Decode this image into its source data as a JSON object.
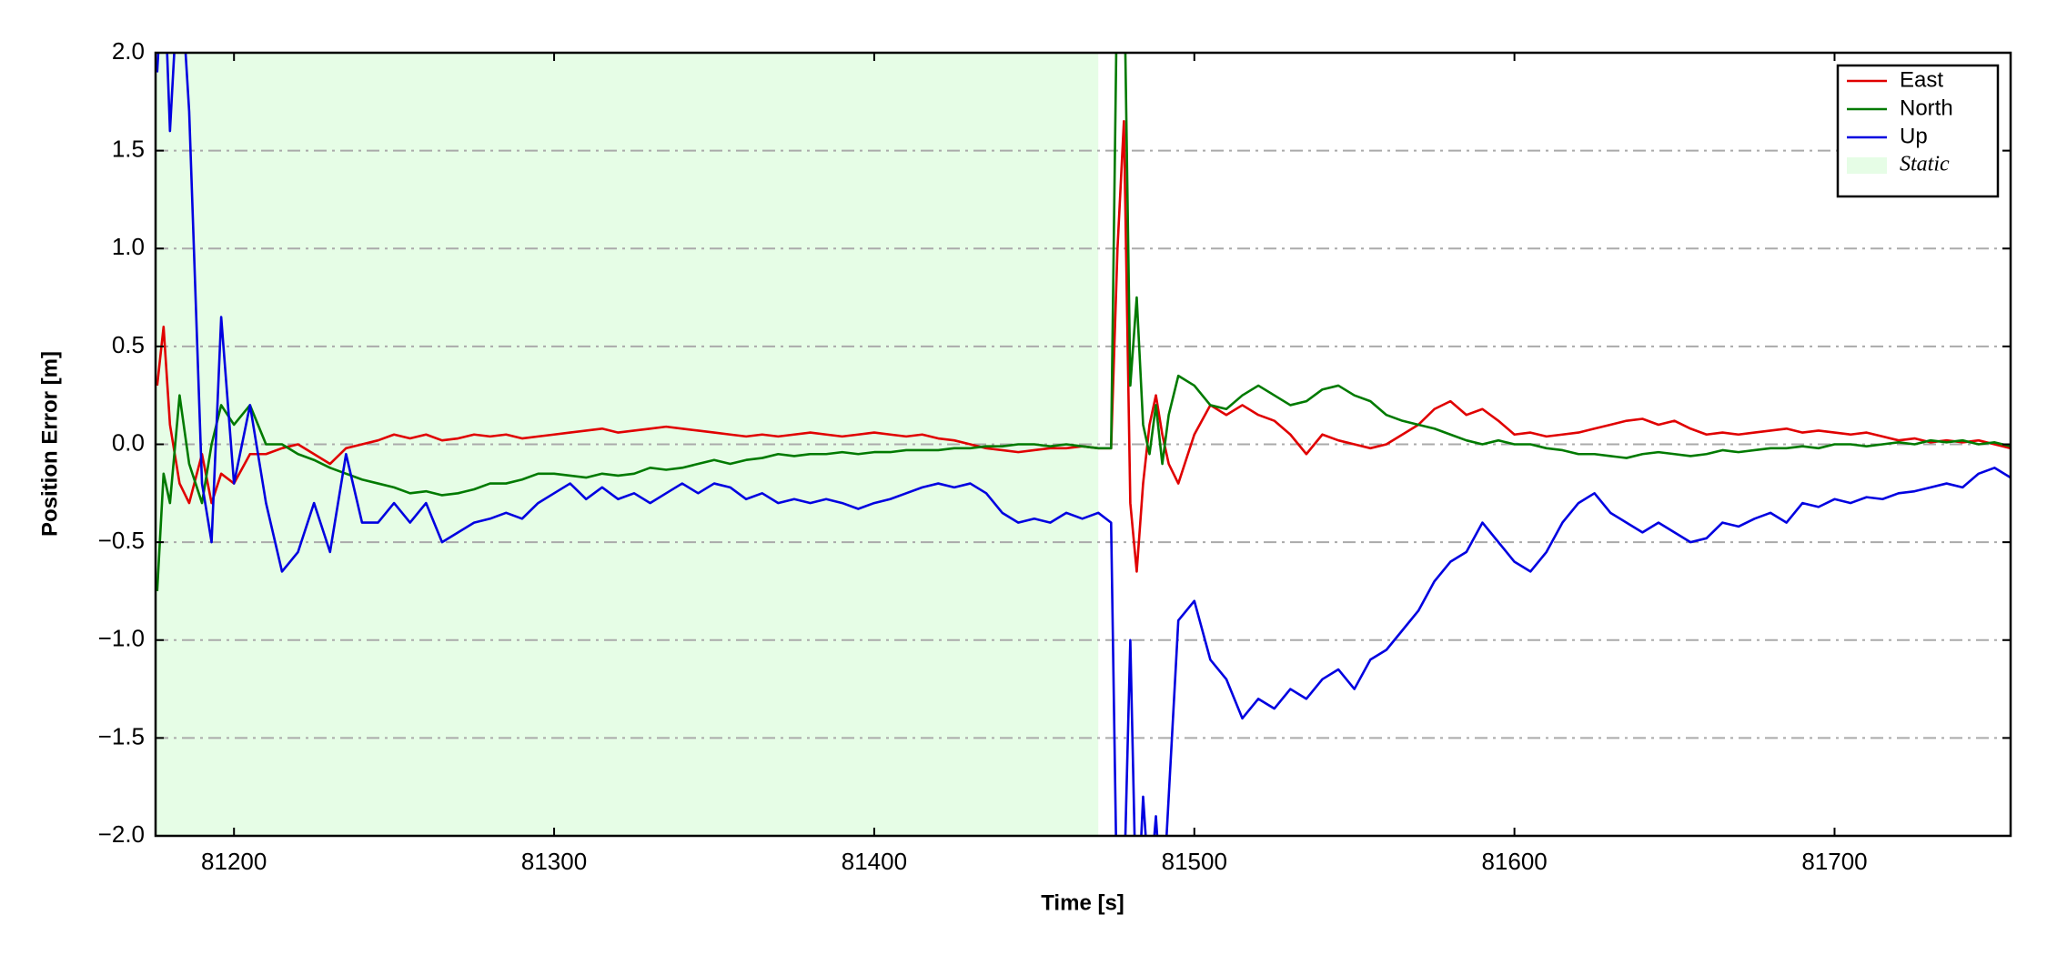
{
  "chart_data": {
    "type": "line",
    "xlabel": "Time [s]",
    "ylabel": "Position Error [m]",
    "x": [
      81176,
      81178,
      81180,
      81183,
      81186,
      81190,
      81193,
      81196,
      81200,
      81205,
      81210,
      81215,
      81220,
      81225,
      81230,
      81235,
      81240,
      81245,
      81250,
      81255,
      81260,
      81265,
      81270,
      81275,
      81280,
      81285,
      81290,
      81295,
      81300,
      81305,
      81310,
      81315,
      81320,
      81325,
      81330,
      81335,
      81340,
      81345,
      81350,
      81355,
      81360,
      81365,
      81370,
      81375,
      81380,
      81385,
      81390,
      81395,
      81400,
      81405,
      81410,
      81415,
      81420,
      81425,
      81430,
      81435,
      81440,
      81445,
      81450,
      81455,
      81460,
      81465,
      81470,
      81474,
      81476,
      81478,
      81480,
      81482,
      81484,
      81486,
      81488,
      81490,
      81492,
      81495,
      81500,
      81505,
      81510,
      81515,
      81520,
      81525,
      81530,
      81535,
      81540,
      81545,
      81550,
      81555,
      81560,
      81565,
      81570,
      81575,
      81580,
      81585,
      81590,
      81595,
      81600,
      81605,
      81610,
      81615,
      81620,
      81625,
      81630,
      81635,
      81640,
      81645,
      81650,
      81655,
      81660,
      81665,
      81670,
      81675,
      81680,
      81685,
      81690,
      81695,
      81700,
      81705,
      81710,
      81715,
      81720,
      81725,
      81730,
      81735,
      81740,
      81745,
      81750,
      81755
    ],
    "series": [
      {
        "name": "East",
        "color": "#e00000",
        "values": [
          0.3,
          0.6,
          0.1,
          -0.2,
          -0.3,
          -0.05,
          -0.3,
          -0.15,
          -0.2,
          -0.05,
          -0.05,
          -0.02,
          0,
          -0.05,
          -0.1,
          -0.02,
          0,
          0.02,
          0.05,
          0.03,
          0.05,
          0.02,
          0.03,
          0.05,
          0.04,
          0.05,
          0.03,
          0.04,
          0.05,
          0.06,
          0.07,
          0.08,
          0.06,
          0.07,
          0.08,
          0.09,
          0.08,
          0.07,
          0.06,
          0.05,
          0.04,
          0.05,
          0.04,
          0.05,
          0.06,
          0.05,
          0.04,
          0.05,
          0.06,
          0.05,
          0.04,
          0.05,
          0.03,
          0.02,
          0,
          -0.02,
          -0.03,
          -0.04,
          -0.03,
          -0.02,
          -0.02,
          -0.01,
          -0.02,
          -0.02,
          1.0,
          1.65,
          -0.3,
          -0.65,
          -0.2,
          0.1,
          0.25,
          0.05,
          -0.1,
          -0.2,
          0.05,
          0.2,
          0.15,
          0.2,
          0.15,
          0.12,
          0.05,
          -0.05,
          0.05,
          0.02,
          0,
          -0.02,
          0,
          0.05,
          0.1,
          0.18,
          0.22,
          0.15,
          0.18,
          0.12,
          0.05,
          0.06,
          0.04,
          0.05,
          0.06,
          0.08,
          0.1,
          0.12,
          0.13,
          0.1,
          0.12,
          0.08,
          0.05,
          0.06,
          0.05,
          0.06,
          0.07,
          0.08,
          0.06,
          0.07,
          0.06,
          0.05,
          0.06,
          0.04,
          0.02,
          0.03,
          0.01,
          0.02,
          0.01,
          0.02,
          0,
          -0.02
        ]
      },
      {
        "name": "North",
        "color": "#007a00",
        "values": [
          -0.75,
          -0.15,
          -0.3,
          0.25,
          -0.1,
          -0.3,
          0,
          0.2,
          0.1,
          0.2,
          0,
          0,
          -0.05,
          -0.08,
          -0.12,
          -0.15,
          -0.18,
          -0.2,
          -0.22,
          -0.25,
          -0.24,
          -0.26,
          -0.25,
          -0.23,
          -0.2,
          -0.2,
          -0.18,
          -0.15,
          -0.15,
          -0.16,
          -0.17,
          -0.15,
          -0.16,
          -0.15,
          -0.12,
          -0.13,
          -0.12,
          -0.1,
          -0.08,
          -0.1,
          -0.08,
          -0.07,
          -0.05,
          -0.06,
          -0.05,
          -0.05,
          -0.04,
          -0.05,
          -0.04,
          -0.04,
          -0.03,
          -0.03,
          -0.03,
          -0.02,
          -0.02,
          -0.01,
          -0.01,
          0,
          0,
          -0.01,
          0,
          -0.01,
          -0.02,
          -0.02,
          2.5,
          2.5,
          0.3,
          0.75,
          0.1,
          -0.05,
          0.2,
          -0.1,
          0.15,
          0.35,
          0.3,
          0.2,
          0.18,
          0.25,
          0.3,
          0.25,
          0.2,
          0.22,
          0.28,
          0.3,
          0.25,
          0.22,
          0.15,
          0.12,
          0.1,
          0.08,
          0.05,
          0.02,
          0,
          0.02,
          0,
          0,
          -0.02,
          -0.03,
          -0.05,
          -0.05,
          -0.06,
          -0.07,
          -0.05,
          -0.04,
          -0.05,
          -0.06,
          -0.05,
          -0.03,
          -0.04,
          -0.03,
          -0.02,
          -0.02,
          -0.01,
          -0.02,
          0,
          0,
          -0.01,
          0,
          0.01,
          0,
          0.02,
          0.01,
          0.02,
          0,
          0.01,
          -0.01
        ]
      },
      {
        "name": "Up",
        "color": "#0000e0",
        "values": [
          1.9,
          2.5,
          1.6,
          2.5,
          1.7,
          -0.2,
          -0.5,
          0.65,
          -0.2,
          0.2,
          -0.3,
          -0.65,
          -0.55,
          -0.3,
          -0.55,
          -0.05,
          -0.4,
          -0.4,
          -0.3,
          -0.4,
          -0.3,
          -0.5,
          -0.45,
          -0.4,
          -0.38,
          -0.35,
          -0.38,
          -0.3,
          -0.25,
          -0.2,
          -0.28,
          -0.22,
          -0.28,
          -0.25,
          -0.3,
          -0.25,
          -0.2,
          -0.25,
          -0.2,
          -0.22,
          -0.28,
          -0.25,
          -0.3,
          -0.28,
          -0.3,
          -0.28,
          -0.3,
          -0.33,
          -0.3,
          -0.28,
          -0.25,
          -0.22,
          -0.2,
          -0.22,
          -0.2,
          -0.25,
          -0.35,
          -0.4,
          -0.38,
          -0.4,
          -0.35,
          -0.38,
          -0.35,
          -0.4,
          -2.5,
          -2.3,
          -1.0,
          -2.5,
          -1.8,
          -2.3,
          -1.9,
          -2.4,
          -1.8,
          -0.9,
          -0.8,
          -1.1,
          -1.2,
          -1.4,
          -1.3,
          -1.35,
          -1.25,
          -1.3,
          -1.2,
          -1.15,
          -1.25,
          -1.1,
          -1.05,
          -0.95,
          -0.85,
          -0.7,
          -0.6,
          -0.55,
          -0.4,
          -0.5,
          -0.6,
          -0.65,
          -0.55,
          -0.4,
          -0.3,
          -0.25,
          -0.35,
          -0.4,
          -0.45,
          -0.4,
          -0.45,
          -0.5,
          -0.48,
          -0.4,
          -0.42,
          -0.38,
          -0.35,
          -0.4,
          -0.3,
          -0.32,
          -0.28,
          -0.3,
          -0.27,
          -0.28,
          -0.25,
          -0.24,
          -0.22,
          -0.2,
          -0.22,
          -0.15,
          -0.12,
          -0.17
        ]
      }
    ],
    "shaded_regions": [
      {
        "name": "Static",
        "color": "#e6fde6",
        "xrange": [
          81175.5,
          81470
        ]
      }
    ],
    "xlim": [
      81175.5,
      81755
    ],
    "xticks": [
      81200,
      81300,
      81400,
      81500,
      81600,
      81700
    ],
    "ylim": [
      -2,
      2
    ],
    "yticks": [
      {
        "value": -2,
        "label": "−2.0"
      },
      {
        "value": -1.5,
        "label": "−1.5"
      },
      {
        "value": -1,
        "label": "−1.0"
      },
      {
        "value": -0.5,
        "label": "−0.5"
      },
      {
        "value": 0,
        "label": "0.0"
      },
      {
        "value": 0.5,
        "label": "0.5"
      },
      {
        "value": 1,
        "label": "1.0"
      },
      {
        "value": 1.5,
        "label": "1.5"
      },
      {
        "value": 2,
        "label": "2.0"
      }
    ],
    "grid": true,
    "legend": "upper right"
  }
}
